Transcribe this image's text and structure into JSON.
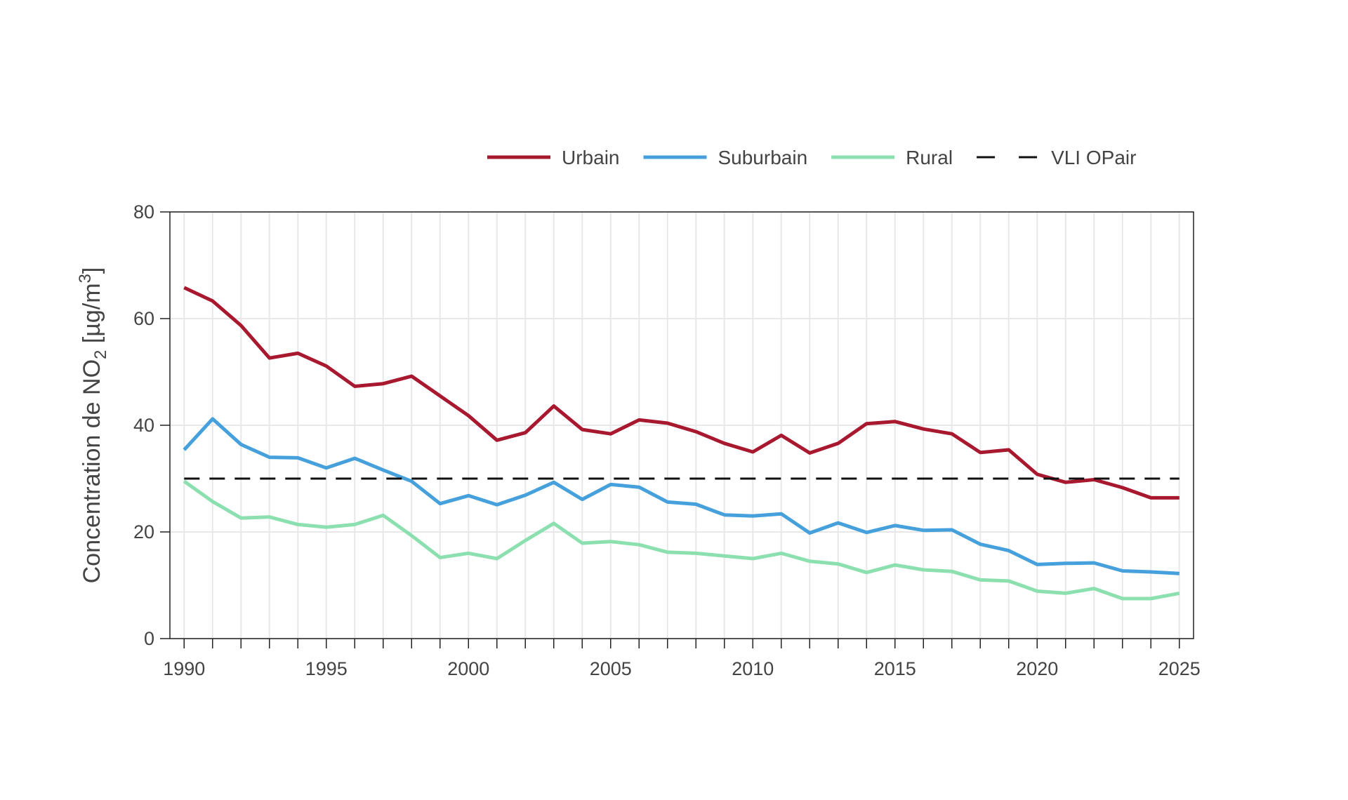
{
  "chart_data": {
    "type": "line",
    "title": "",
    "xlabel": "",
    "ylabel_parts": [
      "Concentration de NO",
      "2",
      " [µg/m",
      "3",
      "]"
    ],
    "xlim": [
      1989.5,
      2025.5
    ],
    "ylim": [
      0,
      80
    ],
    "x_ticks": [
      1990,
      1995,
      2000,
      2005,
      2010,
      2015,
      2020,
      2025
    ],
    "y_ticks": [
      0,
      20,
      40,
      60,
      80
    ],
    "grid": true,
    "legend_position": "top",
    "x": [
      1990,
      1991,
      1992,
      1993,
      1994,
      1995,
      1996,
      1997,
      1998,
      1999,
      2000,
      2001,
      2002,
      2003,
      2004,
      2005,
      2006,
      2007,
      2008,
      2009,
      2010,
      2011,
      2012,
      2013,
      2014,
      2015,
      2016,
      2017,
      2018,
      2019,
      2020,
      2021,
      2022,
      2023,
      2024,
      2025
    ],
    "series": [
      {
        "name": "Urbain",
        "color": "#a8182e",
        "dashed": false,
        "values": [
          65.8,
          63.3,
          58.7,
          52.6,
          53.5,
          51.1,
          47.3,
          47.8,
          49.2,
          45.5,
          41.8,
          37.2,
          38.6,
          43.6,
          39.2,
          38.4,
          41.0,
          40.4,
          38.8,
          36.6,
          35.0,
          38.1,
          34.8,
          36.6,
          40.3,
          40.7,
          39.3,
          38.4,
          34.9,
          35.4,
          30.8,
          29.3,
          29.8,
          28.3,
          26.4,
          26.4
        ]
      },
      {
        "name": "Suburbain",
        "color": "#46a0dc",
        "dashed": false,
        "values": [
          35.4,
          41.2,
          36.4,
          34.0,
          33.9,
          32.0,
          33.8,
          31.6,
          29.5,
          25.3,
          26.8,
          25.1,
          26.9,
          29.3,
          26.1,
          28.9,
          28.4,
          25.6,
          25.2,
          23.2,
          23.0,
          23.4,
          19.8,
          21.7,
          19.9,
          21.2,
          20.3,
          20.4,
          17.7,
          16.5,
          13.9,
          14.1,
          14.2,
          12.7,
          12.5,
          12.2
        ]
      },
      {
        "name": "Rural",
        "color": "#8ce0b0",
        "dashed": false,
        "values": [
          29.5,
          25.7,
          22.6,
          22.8,
          21.4,
          20.9,
          21.4,
          23.1,
          19.3,
          15.2,
          16.0,
          15.0,
          18.4,
          21.6,
          17.9,
          18.2,
          17.6,
          16.2,
          16.0,
          15.5,
          15.0,
          16.0,
          14.5,
          14.0,
          12.4,
          13.8,
          12.9,
          12.6,
          11.0,
          10.8,
          8.9,
          8.5,
          9.4,
          7.5,
          7.5,
          8.5
        ]
      },
      {
        "name": "VLI OPair",
        "color": "#111111",
        "dashed": true,
        "values": [
          30,
          30,
          30,
          30,
          30,
          30,
          30,
          30,
          30,
          30,
          30,
          30,
          30,
          30,
          30,
          30,
          30,
          30,
          30,
          30,
          30,
          30,
          30,
          30,
          30,
          30,
          30,
          30,
          30,
          30,
          30,
          30,
          30,
          30,
          30,
          30
        ]
      }
    ]
  }
}
